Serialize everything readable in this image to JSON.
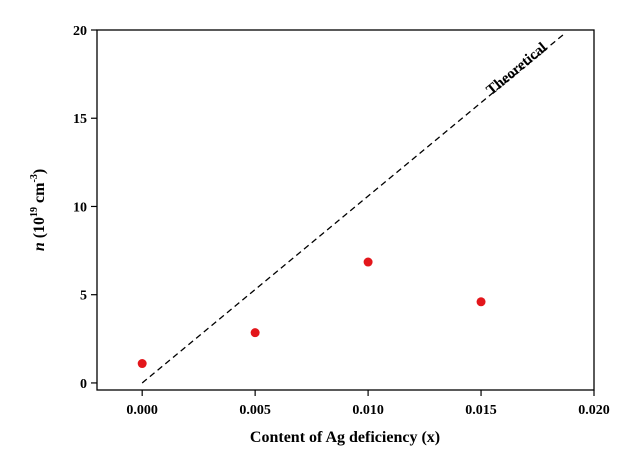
{
  "chart_data": {
    "type": "scatter",
    "xlabel": "Content of Ag deficiency (x)",
    "ylabel": {
      "italic": "n",
      "open": " (10",
      "exp1": "19",
      "mid": " cm",
      "exp2": "-3",
      "close": ")"
    },
    "xlim": [
      -0.002,
      0.02
    ],
    "ylim": [
      -0.4,
      20
    ],
    "x_ticks": [
      0.0,
      0.005,
      0.01,
      0.015,
      0.02
    ],
    "x_tick_labels": [
      "0.000",
      "0.005",
      "0.010",
      "0.015",
      "0.020"
    ],
    "y_ticks": [
      0,
      5,
      10,
      15,
      20
    ],
    "y_tick_labels": [
      "0",
      "5",
      "10",
      "15",
      "20"
    ],
    "grid": false,
    "series": [
      {
        "points": [
          {
            "x": 0.0,
            "y": 1.1
          },
          {
            "x": 0.005,
            "y": 2.85
          },
          {
            "x": 0.01,
            "y": 6.85
          },
          {
            "x": 0.015,
            "y": 4.6
          }
        ],
        "color": "#e3161b",
        "marker": "circle"
      },
      {
        "points": [
          {
            "x": 0.0,
            "y": 0.0
          },
          {
            "x": 0.0187,
            "y": 19.8
          }
        ],
        "color": "#000000",
        "line_style": "dashed"
      }
    ],
    "annotations": [
      {
        "text": "Theoretical",
        "x": 0.0167,
        "y": 17.6
      }
    ]
  }
}
